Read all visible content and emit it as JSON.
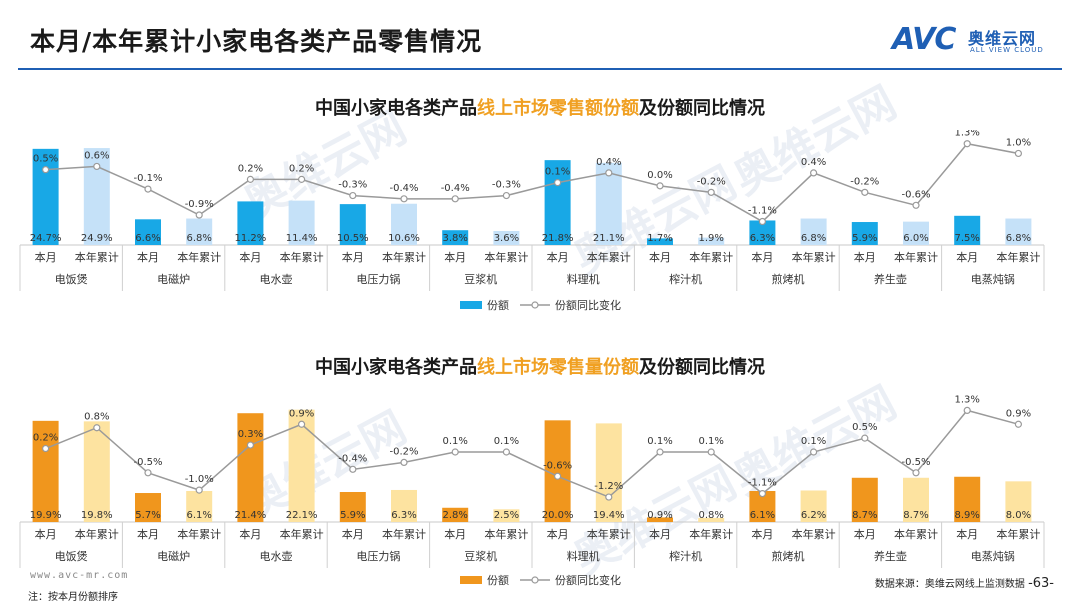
{
  "page": {
    "title": "本月/本年累计小家电各类产品零售情况",
    "logo_mark": "AVC",
    "logo_cn": "奥维云网",
    "logo_en": "ALL VIEW CLOUD",
    "watermark_cn": "奥维云网",
    "watermark_en": "ALL VIEW CLOUD",
    "website": "www.avc-mr.com",
    "note": "注：按本月份额排序",
    "source": "数据来源：奥维云网线上监测数据",
    "page_number": "-63-"
  },
  "colors": {
    "accent_blue": "#1f5fb4",
    "chart1_month": "#18a8e6",
    "chart1_year": "#c5e1f8",
    "chart2_month": "#f0961d",
    "chart2_year": "#fde3a0",
    "line": "#9a9a9a",
    "highlight_text": "#f0a022"
  },
  "chart_data": [
    {
      "type": "bar",
      "title_parts": [
        "中国小家电各类产品",
        "线上市场零售额份额",
        "及份额同比情况"
      ],
      "title": "中国小家电各类产品线上市场零售额份额及份额同比情况",
      "categories": [
        "电饭煲",
        "电磁炉",
        "电水壶",
        "电压力锅",
        "豆浆机",
        "料理机",
        "榨汁机",
        "煎烤机",
        "养生壶",
        "电蒸炖锅"
      ],
      "sub_categories": [
        "本月",
        "本年累计"
      ],
      "series": [
        {
          "name": "份额",
          "kind": "bar",
          "unit": "%",
          "month": [
            24.7,
            6.6,
            11.2,
            10.5,
            3.8,
            21.8,
            1.7,
            6.3,
            5.9,
            7.5
          ],
          "year": [
            24.9,
            6.8,
            11.4,
            10.6,
            3.6,
            21.1,
            1.9,
            6.8,
            6.0,
            6.8
          ]
        },
        {
          "name": "份额同比变化",
          "kind": "line",
          "unit": "%",
          "month": [
            0.5,
            -0.1,
            0.2,
            -0.3,
            -0.4,
            0.1,
            0.0,
            -1.1,
            -0.2,
            1.3
          ],
          "year": [
            0.6,
            -0.9,
            0.2,
            -0.4,
            -0.3,
            0.4,
            -0.2,
            0.4,
            -0.6,
            1.0
          ]
        }
      ],
      "bar_ylim": [
        0,
        28
      ],
      "line_ylim": [
        -1.3,
        1.6
      ],
      "legend_position": "bottom"
    },
    {
      "type": "bar",
      "title_parts": [
        "中国小家电各类产品",
        "线上市场零售量份额",
        "及份额同比情况"
      ],
      "title": "中国小家电各类产品线上市场零售量份额及份额同比情况",
      "categories": [
        "电饭煲",
        "电磁炉",
        "电水壶",
        "电压力锅",
        "豆浆机",
        "料理机",
        "榨汁机",
        "煎烤机",
        "养生壶",
        "电蒸炖锅"
      ],
      "sub_categories": [
        "本月",
        "本年累计"
      ],
      "series": [
        {
          "name": "份额",
          "kind": "bar",
          "unit": "%",
          "month": [
            19.9,
            5.7,
            21.4,
            5.9,
            2.8,
            20.0,
            0.9,
            6.1,
            8.7,
            8.9
          ],
          "year": [
            19.8,
            6.1,
            22.1,
            6.3,
            2.5,
            19.4,
            0.8,
            6.2,
            8.7,
            8.0
          ]
        },
        {
          "name": "份额同比变化",
          "kind": "line",
          "unit": "%",
          "month": [
            0.2,
            -0.5,
            0.3,
            -0.4,
            0.1,
            -0.6,
            0.1,
            -1.1,
            0.5,
            1.3
          ],
          "year": [
            0.8,
            -1.0,
            0.9,
            -0.2,
            0.1,
            -1.2,
            0.1,
            0.1,
            -0.5,
            0.9
          ]
        }
      ],
      "bar_ylim": [
        0,
        24
      ],
      "line_ylim": [
        -1.4,
        1.6
      ],
      "legend_position": "bottom"
    }
  ]
}
